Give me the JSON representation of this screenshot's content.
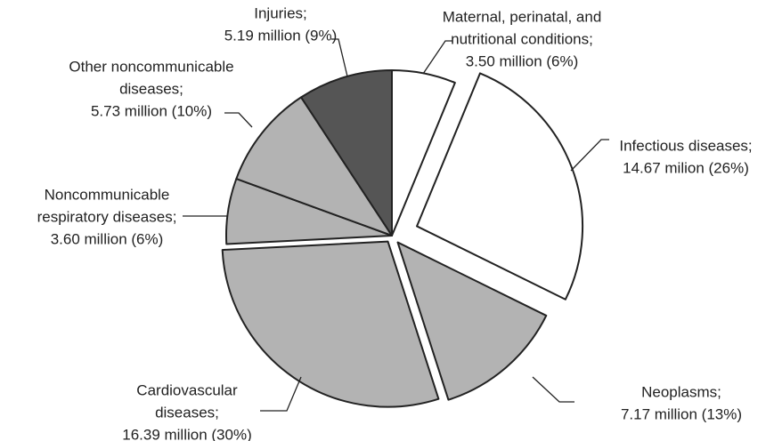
{
  "chart_data": {
    "type": "pie",
    "categories": [
      [
        "Maternal, perinatal, and",
        "nutritional conditions;"
      ],
      [
        "Infectious diseases;"
      ],
      [
        "Neoplasms;"
      ],
      [
        "Cardiovascular",
        "diseases;"
      ],
      [
        "Noncommunicable",
        "respiratory diseases;"
      ],
      [
        "Other noncommunicable",
        "diseases;"
      ],
      [
        "Injuries;"
      ]
    ],
    "values": [
      3.5,
      14.67,
      7.17,
      16.39,
      3.6,
      5.73,
      5.19
    ],
    "value_labels": [
      "3.50 million (6%)",
      "14.67 milion (26%)",
      "7.17 million (13%)",
      "16.39 million (30%)",
      "3.60 million (6%)",
      "5.73 million (10%)",
      "5.19 million (9%)"
    ],
    "colors": [
      "#ffffff",
      "#ffffff",
      "#b3b3b3",
      "#b3b3b3",
      "#b3b3b3",
      "#b3b3b3",
      "#555555"
    ]
  }
}
